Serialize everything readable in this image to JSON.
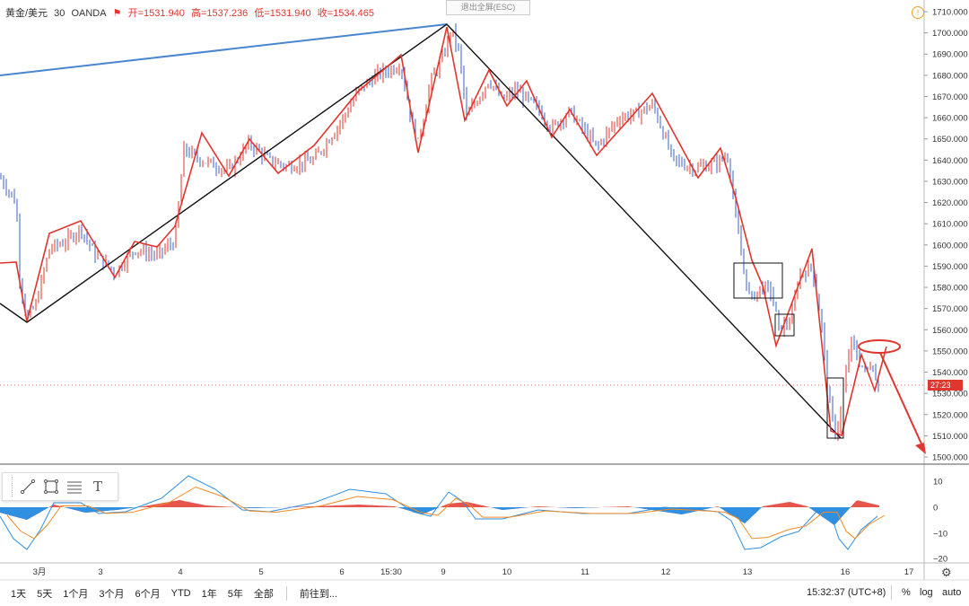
{
  "header": {
    "symbol": "黄金/美元",
    "interval": "30",
    "broker": "OANDA",
    "open_label": "开",
    "open": "=1531.940",
    "high_label": "高",
    "high": "=1537.236",
    "low_label": "低",
    "low": "=1531.940",
    "close_label": "收",
    "close": "=1534.465"
  },
  "exit_fullscreen": "退出全屏(ESC)",
  "price_axis": {
    "labels": [
      "1710.000",
      "1700.000",
      "1690.000",
      "1680.000",
      "1670.000",
      "1660.000",
      "1650.000",
      "1640.000",
      "1630.000",
      "1620.000",
      "1610.000",
      "1600.000",
      "1590.000",
      "1580.000",
      "1570.000",
      "1560.000",
      "1550.000",
      "1540.000",
      "1530.000",
      "1520.000",
      "1510.000",
      "1500.000"
    ],
    "current_tag": "27:23"
  },
  "indicator_axis": {
    "labels": [
      "10",
      "0",
      "−10",
      "−20"
    ]
  },
  "time_axis": {
    "labels": [
      "3月",
      "3",
      "4",
      "5",
      "6",
      "15:30",
      "9",
      "10",
      "11",
      "12",
      "13",
      "16",
      "17"
    ]
  },
  "toolbar": {
    "tools": [
      "line-tool",
      "rectangle-tool",
      "fib-tool",
      "text-tool"
    ],
    "text_glyph": "T"
  },
  "bottom_bar": {
    "timeframes": [
      "1天",
      "5天",
      "1个月",
      "3个月",
      "6个月",
      "YTD",
      "1年",
      "5年",
      "全部"
    ],
    "goto": "前往到...",
    "clock": "15:32:37 (UTC+8)",
    "percent": "%",
    "log": "log",
    "auto": "auto"
  },
  "colors": {
    "up": "#e0362e",
    "down": "#3a60c8",
    "zigzag": "#e0362e",
    "trend_black": "#111111",
    "trend_blue": "#4a86d0",
    "macd_pos": "#e0362e",
    "macd_neg": "#2f8fe0"
  }
}
